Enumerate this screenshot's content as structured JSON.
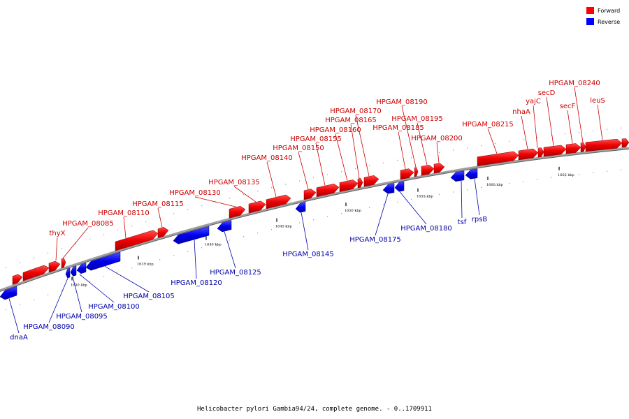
{
  "caption": "Helicobacter pylori Gambia94/24, complete genome. - 0..1709911",
  "legend": [
    {
      "label": "Forward",
      "color": "#ff0000"
    },
    {
      "label": "Reverse",
      "color": "#0000ff"
    }
  ],
  "colors": {
    "forward": "#ff0000",
    "forward_label": "#cc0000",
    "reverse": "#0000ff",
    "reverse_label": "#0000aa",
    "backbone": "#808080"
  },
  "ticks": [
    {
      "label": "1630 kbp"
    },
    {
      "label": "1635 kbp"
    },
    {
      "label": "1640 kbp"
    },
    {
      "label": "1645 kbp"
    },
    {
      "label": "1650 kbp"
    },
    {
      "label": "1655 kbp"
    },
    {
      "label": "1660 kbp"
    },
    {
      "label": "1665 kbp"
    }
  ],
  "forward_genes": [
    {
      "name": "thyX"
    },
    {
      "name": "HPGAM_08085"
    },
    {
      "name": "HPGAM_08110"
    },
    {
      "name": "HPGAM_08115"
    },
    {
      "name": "HPGAM_08130"
    },
    {
      "name": "HPGAM_08135"
    },
    {
      "name": "HPGAM_08140"
    },
    {
      "name": "HPGAM_08150"
    },
    {
      "name": "HPGAM_08155"
    },
    {
      "name": "HPGAM_08160"
    },
    {
      "name": "HPGAM_08165"
    },
    {
      "name": "HPGAM_08170"
    },
    {
      "name": "HPGAM_08185"
    },
    {
      "name": "HPGAM_08190"
    },
    {
      "name": "HPGAM_08195"
    },
    {
      "name": "HPGAM_08200"
    },
    {
      "name": "HPGAM_08215"
    },
    {
      "name": "nhaA"
    },
    {
      "name": "yajC"
    },
    {
      "name": "secD"
    },
    {
      "name": "secF"
    },
    {
      "name": "HPGAM_08240"
    },
    {
      "name": "leuS"
    }
  ],
  "reverse_genes": [
    {
      "name": "dnaA"
    },
    {
      "name": "HPGAM_08090"
    },
    {
      "name": "HPGAM_08095"
    },
    {
      "name": "HPGAM_08100"
    },
    {
      "name": "HPGAM_08105"
    },
    {
      "name": "HPGAM_08120"
    },
    {
      "name": "HPGAM_08125"
    },
    {
      "name": "HPGAM_08145"
    },
    {
      "name": "HPGAM_08175"
    },
    {
      "name": "HPGAM_08180"
    },
    {
      "name": "tsf"
    },
    {
      "name": "rpsB"
    }
  ]
}
